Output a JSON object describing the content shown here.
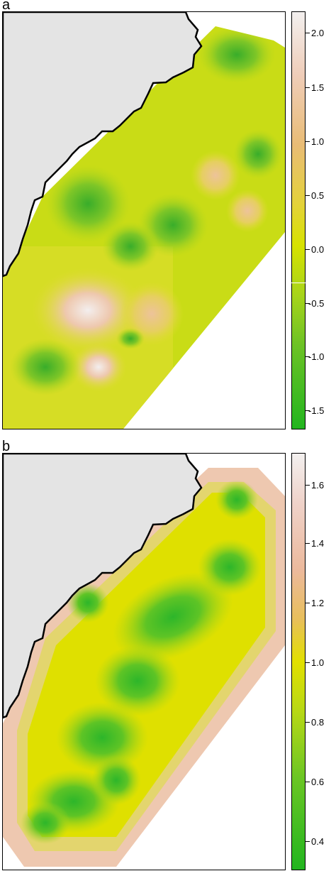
{
  "panels": [
    {
      "label": "a",
      "ticks": [
        "2.0",
        "1.5",
        "1.0",
        "0.5",
        "0.0",
        "-0.5",
        "-1.0",
        "-1.5"
      ],
      "colors": {
        "land": "#e4e4e4",
        "low": "#22b51f",
        "mid": "#d7e200",
        "high": "#f3f0ef",
        "marker": "#ffffff"
      }
    },
    {
      "label": "b",
      "ticks": [
        "1.6",
        "1.4",
        "1.2",
        "1.0",
        "0.8",
        "0.6",
        "0.4"
      ],
      "colors": {
        "land": "#e4e4e4",
        "low": "#22b51f",
        "mid": "#e2e100",
        "high": "#f3f0ef"
      }
    }
  ]
}
